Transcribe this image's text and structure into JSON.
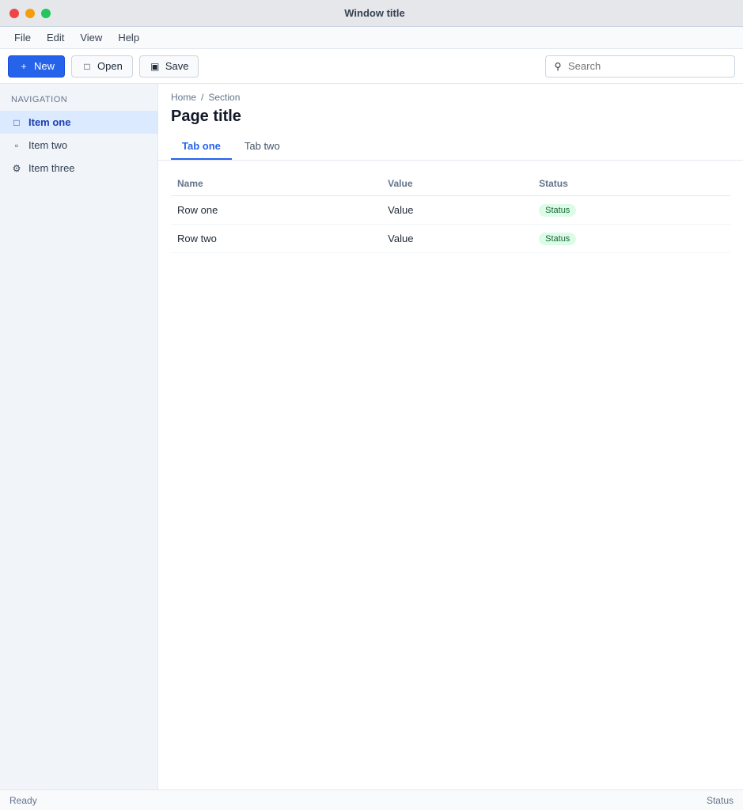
{
  "window": {
    "title": "Window title"
  },
  "menu": [
    "File",
    "Edit",
    "View",
    "Help"
  ],
  "toolbar": {
    "new_label": "New",
    "open_label": "Open",
    "save_label": "Save",
    "search_placeholder": "Search"
  },
  "sidebar": {
    "heading": "Navigation",
    "items": [
      {
        "label": "Item one",
        "icon": "folder-icon"
      },
      {
        "label": "Item two",
        "icon": "file-icon"
      },
      {
        "label": "Item three",
        "icon": "settings-icon"
      }
    ]
  },
  "main": {
    "breadcrumb": [
      "Home",
      "Section"
    ],
    "title": "Page title",
    "tabs": [
      "Tab one",
      "Tab two"
    ],
    "table": {
      "headers": [
        "Name",
        "Value",
        "Status"
      ],
      "rows": [
        {
          "name": "Row one",
          "value": "Value",
          "status": "Status"
        },
        {
          "name": "Row two",
          "value": "Value",
          "status": "Status"
        }
      ]
    }
  },
  "statusbar": {
    "left": "Ready",
    "right": "Status"
  }
}
